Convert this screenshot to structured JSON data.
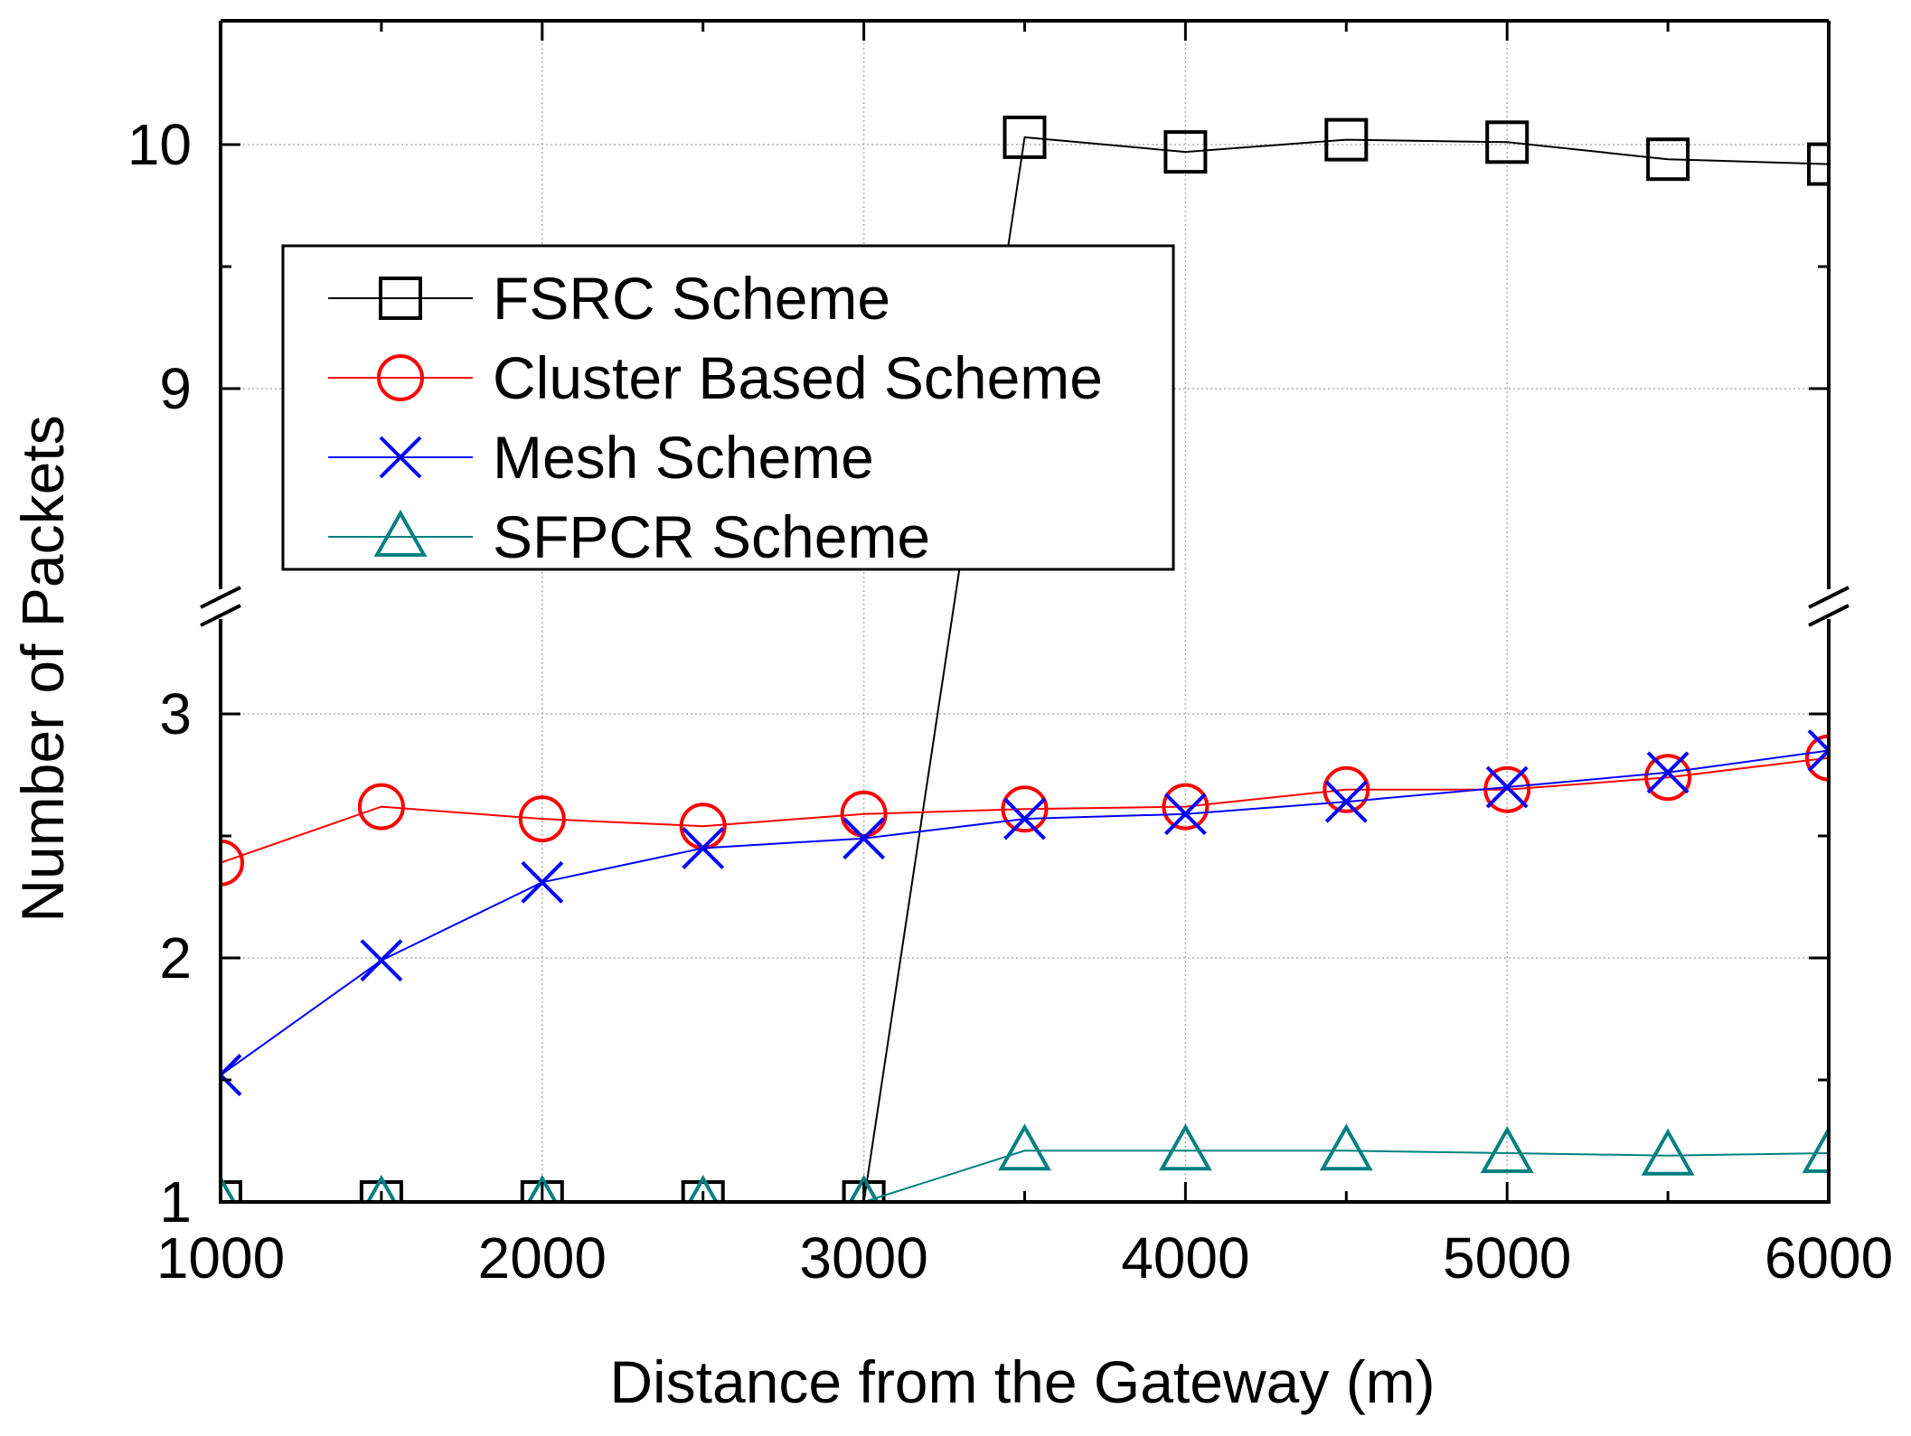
{
  "chart_data": {
    "type": "line",
    "xlabel": "Distance from the Gateway (m)",
    "ylabel": "Number of Packets",
    "xlim": [
      1000,
      6000
    ],
    "ylim_lower": [
      1,
      3.5
    ],
    "ylim_upper": [
      8.5,
      10.5
    ],
    "axis_break": true,
    "x_ticks": [
      1000,
      2000,
      3000,
      4000,
      5000,
      6000
    ],
    "y_ticks": [
      1,
      2,
      3,
      9,
      10
    ],
    "grid": true,
    "legend_position": "upper-left",
    "x": [
      1000,
      1500,
      2000,
      2500,
      3000,
      3500,
      4000,
      4500,
      5000,
      5500,
      6000
    ],
    "series": [
      {
        "name": "FSRC Scheme",
        "color": "#000000",
        "marker": "square",
        "values": [
          1.0,
          1.0,
          1.0,
          1.0,
          1.0,
          10.03,
          9.97,
          10.02,
          10.01,
          9.94,
          9.92
        ]
      },
      {
        "name": "Cluster Based Scheme",
        "color": "#ff0000",
        "marker": "circle",
        "values": [
          2.39,
          2.62,
          2.57,
          2.54,
          2.59,
          2.61,
          2.62,
          2.69,
          2.69,
          2.74,
          2.82
        ]
      },
      {
        "name": "Mesh Scheme",
        "color": "#0000ff",
        "marker": "x",
        "values": [
          1.52,
          1.99,
          2.31,
          2.45,
          2.49,
          2.57,
          2.59,
          2.64,
          2.7,
          2.76,
          2.85
        ]
      },
      {
        "name": "SFPCR Scheme",
        "color": "#008080",
        "marker": "triangle",
        "values": [
          1.0,
          1.0,
          1.0,
          1.0,
          1.0,
          1.21,
          1.21,
          1.21,
          1.2,
          1.19,
          1.2
        ]
      }
    ]
  }
}
